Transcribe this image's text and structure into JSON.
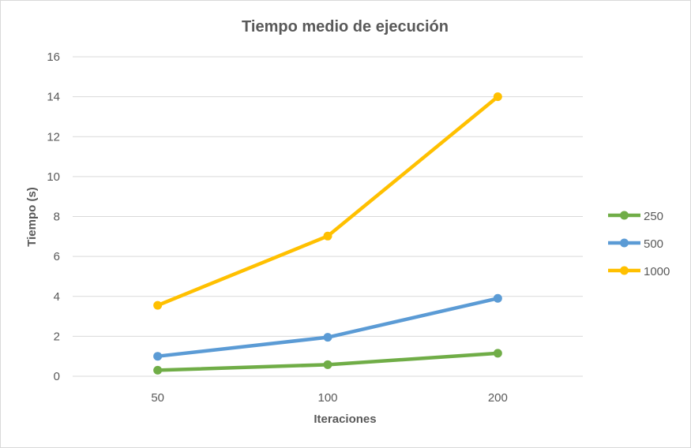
{
  "chart_data": {
    "type": "line",
    "title": "Tiempo medio de ejecución",
    "xlabel": "Iteraciones",
    "ylabel": "Tiempo (s)",
    "categories": [
      "50",
      "100",
      "200"
    ],
    "yticks": [
      "0",
      "2",
      "4",
      "6",
      "8",
      "10",
      "12",
      "14",
      "16"
    ],
    "ylim": [
      0,
      16
    ],
    "grid": true,
    "legend_position": "right",
    "series": [
      {
        "name": "250",
        "color": "#70ad47",
        "values": [
          0.3,
          0.58,
          1.15
        ]
      },
      {
        "name": "500",
        "color": "#5b9bd5",
        "values": [
          1.0,
          1.95,
          3.9
        ]
      },
      {
        "name": "1000",
        "color": "#ffc000",
        "values": [
          3.55,
          7.02,
          14.0
        ]
      }
    ]
  }
}
